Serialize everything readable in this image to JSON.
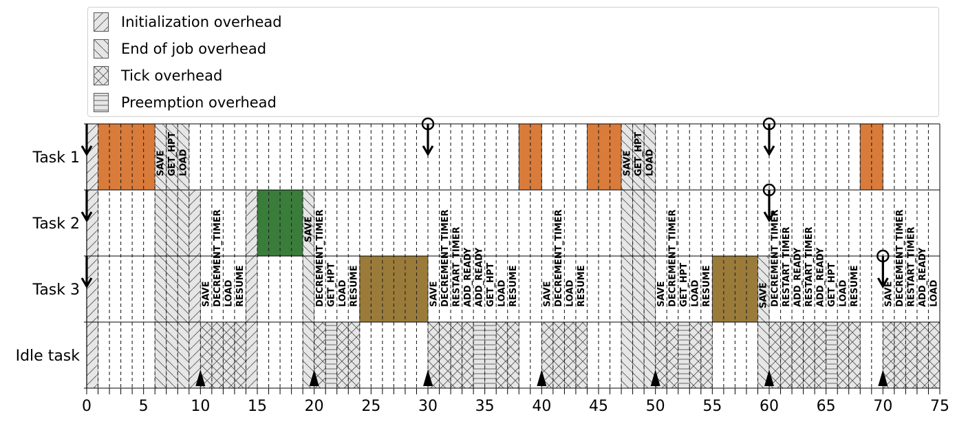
{
  "legend": {
    "items": [
      {
        "label": "Initialization overhead",
        "hatch": "init"
      },
      {
        "label": "End of job overhead",
        "hatch": "eoj"
      },
      {
        "label": "Tick overhead",
        "hatch": "tick"
      },
      {
        "label": "Preemption overhead",
        "hatch": "preempt"
      }
    ]
  },
  "chart_data": {
    "type": "gantt",
    "tasks": [
      "Task 1",
      "Task 2",
      "Task 3",
      "Idle task"
    ],
    "xlim": [
      0,
      75
    ],
    "xticks": [
      0,
      5,
      10,
      15,
      20,
      25,
      30,
      35,
      40,
      45,
      50,
      55,
      60,
      65,
      70,
      75
    ],
    "grid_step": 1,
    "colors": {
      "Task 1": "#d97b3a",
      "Task 2": "#3a7d3b",
      "Task 3": "#9a7b3a",
      "overhead": "#e6e6e6"
    },
    "execution": [
      {
        "task": "Task 1",
        "start": 1,
        "end": 6
      },
      {
        "task": "Task 1",
        "start": 38,
        "end": 40
      },
      {
        "task": "Task 1",
        "start": 44,
        "end": 47
      },
      {
        "task": "Task 1",
        "start": 68,
        "end": 70
      },
      {
        "task": "Task 2",
        "start": 15,
        "end": 19
      },
      {
        "task": "Task 3",
        "start": 24,
        "end": 30
      },
      {
        "task": "Task 3",
        "start": 55,
        "end": 59
      }
    ],
    "overheads": [
      {
        "task": "Task 1",
        "start": 0,
        "end": 1,
        "kind": "init",
        "label": ""
      },
      {
        "task": "Task 1",
        "start": 6,
        "end": 7,
        "kind": "eoj",
        "label": "SAVE"
      },
      {
        "task": "Task 1",
        "start": 7,
        "end": 8,
        "kind": "eoj",
        "label": "GET_HPT"
      },
      {
        "task": "Task 1",
        "start": 8,
        "end": 9,
        "kind": "eoj",
        "label": "LOAD"
      },
      {
        "task": "Task 2",
        "start": 9,
        "end": 10,
        "kind": "init",
        "label": ""
      },
      {
        "task": "Idle task",
        "start": 10,
        "end": 11,
        "kind": "tick",
        "label": "SAVE"
      },
      {
        "task": "Idle task",
        "start": 11,
        "end": 12,
        "kind": "tick",
        "label": "DECREMENT_TIMER"
      },
      {
        "task": "Idle task",
        "start": 12,
        "end": 13,
        "kind": "tick",
        "label": "LOAD"
      },
      {
        "task": "Idle task",
        "start": 13,
        "end": 14,
        "kind": "tick",
        "label": "RESUME"
      },
      {
        "task": "Task 2",
        "start": 14,
        "end": 15,
        "kind": "init",
        "label": ""
      },
      {
        "task": "Task 2",
        "start": 19,
        "end": 20,
        "kind": "eoj",
        "label": "SAVE"
      },
      {
        "task": "Idle task",
        "start": 20,
        "end": 21,
        "kind": "tick",
        "label": "DECREMENT_TIMER"
      },
      {
        "task": "Idle task",
        "start": 21,
        "end": 22,
        "kind": "preempt",
        "label": "GET_HPT"
      },
      {
        "task": "Idle task",
        "start": 22,
        "end": 23,
        "kind": "tick",
        "label": "LOAD"
      },
      {
        "task": "Idle task",
        "start": 23,
        "end": 24,
        "kind": "tick",
        "label": "RESUME"
      },
      {
        "task": "Idle task",
        "start": 30,
        "end": 31,
        "kind": "tick",
        "label": "SAVE"
      },
      {
        "task": "Idle task",
        "start": 31,
        "end": 32,
        "kind": "tick",
        "label": "DECREMENT_TIMER"
      },
      {
        "task": "Idle task",
        "start": 32,
        "end": 33,
        "kind": "tick",
        "label": "RESTART_TIMER"
      },
      {
        "task": "Idle task",
        "start": 33,
        "end": 34,
        "kind": "tick",
        "label": "ADD_READY"
      },
      {
        "task": "Idle task",
        "start": 34,
        "end": 35,
        "kind": "preempt",
        "label": "ADD_READY"
      },
      {
        "task": "Idle task",
        "start": 35,
        "end": 36,
        "kind": "preempt",
        "label": "GET_HPT"
      },
      {
        "task": "Idle task",
        "start": 36,
        "end": 37,
        "kind": "tick",
        "label": "LOAD"
      },
      {
        "task": "Idle task",
        "start": 37,
        "end": 38,
        "kind": "tick",
        "label": "RESUME"
      },
      {
        "task": "Idle task",
        "start": 40,
        "end": 41,
        "kind": "tick",
        "label": "SAVE"
      },
      {
        "task": "Idle task",
        "start": 41,
        "end": 42,
        "kind": "tick",
        "label": "DECREMENT_TIMER"
      },
      {
        "task": "Idle task",
        "start": 42,
        "end": 43,
        "kind": "tick",
        "label": "LOAD"
      },
      {
        "task": "Idle task",
        "start": 43,
        "end": 44,
        "kind": "tick",
        "label": "RESUME"
      },
      {
        "task": "Task 1",
        "start": 47,
        "end": 48,
        "kind": "eoj",
        "label": "SAVE"
      },
      {
        "task": "Task 1",
        "start": 48,
        "end": 49,
        "kind": "eoj",
        "label": "GET_HPT"
      },
      {
        "task": "Task 1",
        "start": 49,
        "end": 50,
        "kind": "eoj",
        "label": "LOAD"
      },
      {
        "task": "Idle task",
        "start": 50,
        "end": 51,
        "kind": "tick",
        "label": "SAVE"
      },
      {
        "task": "Idle task",
        "start": 51,
        "end": 52,
        "kind": "tick",
        "label": "DECREMENT_TIMER"
      },
      {
        "task": "Idle task",
        "start": 52,
        "end": 53,
        "kind": "preempt",
        "label": "GET_HPT"
      },
      {
        "task": "Idle task",
        "start": 53,
        "end": 54,
        "kind": "tick",
        "label": "LOAD"
      },
      {
        "task": "Idle task",
        "start": 54,
        "end": 55,
        "kind": "tick",
        "label": "RESUME"
      },
      {
        "task": "Task 3",
        "start": 59,
        "end": 60,
        "kind": "eoj",
        "label": "SAVE"
      },
      {
        "task": "Idle task",
        "start": 60,
        "end": 61,
        "kind": "tick",
        "label": "DECREMENT_TIMER"
      },
      {
        "task": "Idle task",
        "start": 61,
        "end": 62,
        "kind": "tick",
        "label": "RESTART_TIMER"
      },
      {
        "task": "Idle task",
        "start": 62,
        "end": 63,
        "kind": "tick",
        "label": "ADD_READY"
      },
      {
        "task": "Idle task",
        "start": 63,
        "end": 64,
        "kind": "tick",
        "label": "RESTART_TIMER"
      },
      {
        "task": "Idle task",
        "start": 64,
        "end": 65,
        "kind": "tick",
        "label": "ADD_READY"
      },
      {
        "task": "Idle task",
        "start": 65,
        "end": 66,
        "kind": "preempt",
        "label": "GET_HPT"
      },
      {
        "task": "Idle task",
        "start": 66,
        "end": 67,
        "kind": "tick",
        "label": "LOAD"
      },
      {
        "task": "Idle task",
        "start": 67,
        "end": 68,
        "kind": "tick",
        "label": "RESUME"
      },
      {
        "task": "Idle task",
        "start": 70,
        "end": 71,
        "kind": "tick",
        "label": "SAVE"
      },
      {
        "task": "Idle task",
        "start": 71,
        "end": 72,
        "kind": "tick",
        "label": "DECREMENT_TIMER"
      },
      {
        "task": "Idle task",
        "start": 72,
        "end": 73,
        "kind": "tick",
        "label": "RESTART_TIMER"
      },
      {
        "task": "Idle task",
        "start": 73,
        "end": 74,
        "kind": "tick",
        "label": "ADD_READY"
      },
      {
        "task": "Idle task",
        "start": 74,
        "end": 75,
        "kind": "tick",
        "label": "LOAD"
      }
    ],
    "releases": [
      {
        "task": "Task 1",
        "time": 0,
        "deadline_marker": false
      },
      {
        "task": "Task 2",
        "time": 0,
        "deadline_marker": false
      },
      {
        "task": "Task 3",
        "time": 0,
        "deadline_marker": false
      },
      {
        "task": "Task 1",
        "time": 30,
        "deadline_marker": true
      },
      {
        "task": "Task 1",
        "time": 60,
        "deadline_marker": true
      },
      {
        "task": "Task 2",
        "time": 60,
        "deadline_marker": true
      },
      {
        "task": "Task 3",
        "time": 70,
        "deadline_marker": true
      }
    ],
    "ticks": [
      10,
      20,
      30,
      40,
      50,
      60,
      70
    ]
  }
}
